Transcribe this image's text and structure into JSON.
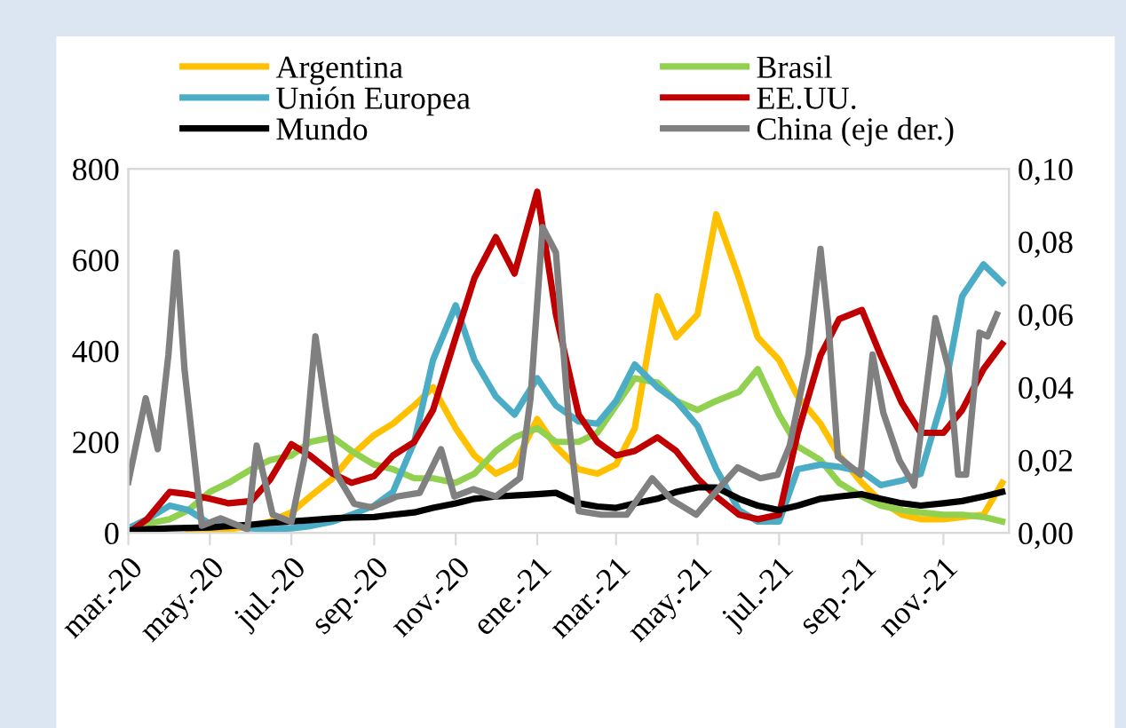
{
  "chart_data": {
    "type": "line",
    "legend": "top",
    "grid": false,
    "marker": "none",
    "line_style": "solid",
    "x": [
      "2020-03-01",
      "2020-03-15",
      "2020-04-01",
      "2020-04-15",
      "2020-05-01",
      "2020-05-15",
      "2020-06-01",
      "2020-06-15",
      "2020-07-01",
      "2020-07-15",
      "2020-08-01",
      "2020-08-15",
      "2020-09-01",
      "2020-09-15",
      "2020-10-01",
      "2020-10-15",
      "2020-11-01",
      "2020-11-15",
      "2020-12-01",
      "2020-12-15",
      "2021-01-01",
      "2021-01-15",
      "2021-02-01",
      "2021-02-15",
      "2021-03-01",
      "2021-03-15",
      "2021-04-01",
      "2021-04-15",
      "2021-05-01",
      "2021-05-15",
      "2021-06-01",
      "2021-06-15",
      "2021-07-01",
      "2021-07-15",
      "2021-08-01",
      "2021-08-15",
      "2021-09-01",
      "2021-09-15",
      "2021-10-01",
      "2021-10-15",
      "2021-11-01",
      "2021-11-15",
      "2021-12-01",
      "2021-12-15"
    ],
    "xlim": [
      "2020-03-01",
      "2021-12-20"
    ],
    "xticks": [
      {
        "value": "2020-03-01",
        "label": "mar.-20"
      },
      {
        "value": "2020-05-01",
        "label": "may.-20"
      },
      {
        "value": "2020-07-01",
        "label": "jul.-20"
      },
      {
        "value": "2020-09-01",
        "label": "sep.-20"
      },
      {
        "value": "2020-11-01",
        "label": "nov.-20"
      },
      {
        "value": "2021-01-01",
        "label": "ene.-21"
      },
      {
        "value": "2021-03-01",
        "label": "mar.-21"
      },
      {
        "value": "2021-05-01",
        "label": "may.-21"
      },
      {
        "value": "2021-07-01",
        "label": "jul.-21"
      },
      {
        "value": "2021-09-01",
        "label": "sep.-21"
      },
      {
        "value": "2021-11-01",
        "label": "nov.-21"
      }
    ],
    "ylim": [
      0,
      800
    ],
    "yticks": [
      0,
      200,
      400,
      600,
      800
    ],
    "y2lim": [
      0,
      0.1
    ],
    "y2ticks": [
      {
        "value": 0,
        "label": "0,00"
      },
      {
        "value": 0.02,
        "label": "0,02"
      },
      {
        "value": 0.04,
        "label": "0,04"
      },
      {
        "value": 0.06,
        "label": "0,06"
      },
      {
        "value": 0.08,
        "label": "0,08"
      },
      {
        "value": 0.1,
        "label": "0,10"
      }
    ],
    "series": [
      {
        "name": "Argentina",
        "color": "#ffc000",
        "values": [
          null,
          null,
          null,
          5,
          5,
          8,
          15,
          25,
          45,
          80,
          120,
          170,
          215,
          240,
          280,
          320,
          230,
          170,
          130,
          150,
          250,
          190,
          140,
          130,
          150,
          230,
          520,
          430,
          480,
          700,
          560,
          430,
          380,
          300,
          240,
          170,
          110,
          70,
          40,
          30,
          30,
          35,
          40,
          110
        ]
      },
      {
        "name": "Brasil",
        "color": "#92d050",
        "values": [
          0,
          20,
          30,
          50,
          90,
          110,
          140,
          160,
          170,
          200,
          210,
          180,
          150,
          140,
          120,
          120,
          110,
          130,
          180,
          210,
          230,
          200,
          200,
          220,
          280,
          340,
          330,
          290,
          270,
          290,
          310,
          360,
          260,
          190,
          160,
          110,
          80,
          60,
          50,
          45,
          40,
          40,
          35,
          25
        ]
      },
      {
        "name": "Unión Europea",
        "color": "#4bacc6",
        "values": [
          10,
          30,
          60,
          50,
          20,
          20,
          10,
          8,
          10,
          15,
          25,
          40,
          60,
          90,
          200,
          380,
          500,
          380,
          300,
          260,
          340,
          280,
          245,
          240,
          290,
          370,
          320,
          290,
          235,
          140,
          50,
          25,
          25,
          140,
          150,
          145,
          135,
          105,
          115,
          130,
          300,
          520,
          590,
          550
        ]
      },
      {
        "name": "EE.UU.",
        "color": "#c00000",
        "values": [
          0,
          30,
          90,
          85,
          75,
          65,
          70,
          117,
          195,
          170,
          130,
          110,
          125,
          170,
          200,
          270,
          430,
          560,
          650,
          570,
          750,
          480,
          260,
          200,
          170,
          180,
          210,
          180,
          120,
          80,
          40,
          30,
          40,
          220,
          390,
          470,
          490,
          390,
          285,
          220,
          220,
          270,
          360,
          415
        ]
      },
      {
        "name": "Mundo",
        "color": "#000000",
        "values": [
          5,
          8,
          10,
          11,
          12,
          15,
          18,
          22,
          25,
          28,
          32,
          34,
          35,
          40,
          45,
          55,
          65,
          75,
          80,
          82,
          85,
          88,
          65,
          58,
          55,
          65,
          75,
          90,
          100,
          100,
          75,
          60,
          50,
          60,
          75,
          80,
          85,
          75,
          65,
          60,
          65,
          70,
          80,
          90
        ]
      },
      {
        "name": "China (eje der.)",
        "color": "#808080",
        "axis": "y2",
        "x": [
          "2020-03-01",
          "2020-03-14",
          "2020-03-23",
          "2020-03-31",
          "2020-04-06",
          "2020-04-12",
          "2020-04-25",
          "2020-05-09",
          "2020-05-29",
          "2020-06-05",
          "2020-06-17",
          "2020-07-01",
          "2020-07-11",
          "2020-07-19",
          "2020-07-27",
          "2020-08-04",
          "2020-08-17",
          "2020-08-30",
          "2020-09-18",
          "2020-10-05",
          "2020-10-21",
          "2020-10-31",
          "2020-11-14",
          "2020-12-01",
          "2020-12-19",
          "2020-12-27",
          "2021-01-05",
          "2021-01-15",
          "2021-01-25",
          "2021-02-01",
          "2021-02-18",
          "2021-03-09",
          "2021-03-28",
          "2021-04-12",
          "2021-04-30",
          "2021-05-14",
          "2021-05-31",
          "2021-06-17",
          "2021-06-30",
          "2021-07-09",
          "2021-07-23",
          "2021-08-01",
          "2021-08-07",
          "2021-08-14",
          "2021-08-31",
          "2021-09-09",
          "2021-09-17",
          "2021-09-29",
          "2021-10-10",
          "2021-10-26",
          "2021-11-05",
          "2021-11-12",
          "2021-11-18",
          "2021-11-28",
          "2021-12-04",
          "2021-12-11"
        ],
        "values": [
          0.014,
          0.037,
          0.023,
          0.049,
          0.077,
          0.045,
          0.002,
          0.004,
          0.001,
          0.024,
          0.005,
          0.003,
          0.021,
          0.054,
          0.034,
          0.016,
          0.008,
          0.007,
          0.01,
          0.011,
          0.023,
          0.01,
          0.012,
          0.01,
          0.015,
          0.037,
          0.084,
          0.077,
          0.029,
          0.006,
          0.005,
          0.005,
          0.015,
          0.009,
          0.005,
          0.011,
          0.018,
          0.015,
          0.016,
          0.024,
          0.049,
          0.078,
          0.057,
          0.021,
          0.016,
          0.049,
          0.033,
          0.02,
          0.013,
          0.059,
          0.045,
          0.016,
          0.016,
          0.055,
          0.054,
          0.06
        ]
      }
    ]
  }
}
